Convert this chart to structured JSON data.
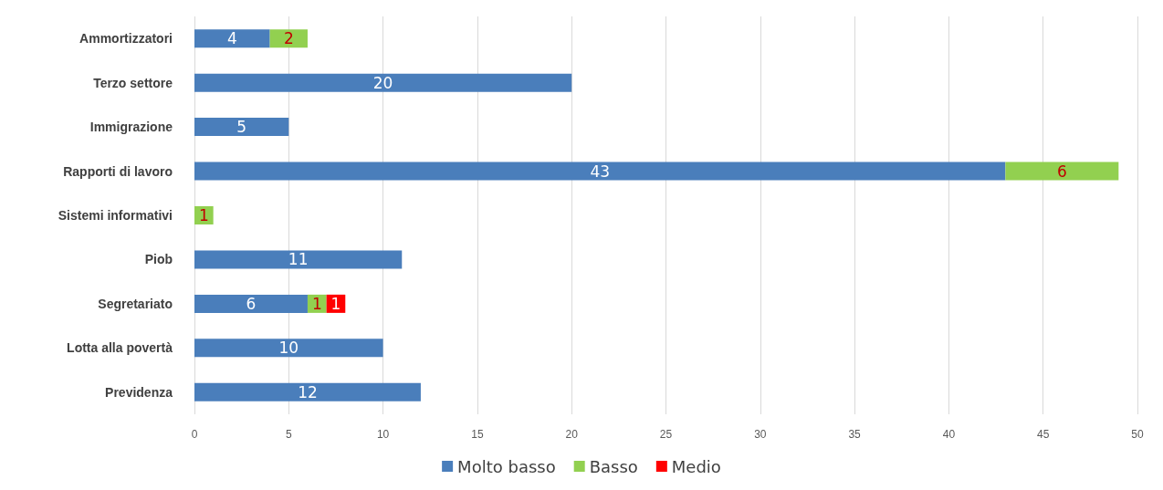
{
  "chart_data": {
    "type": "bar",
    "orientation": "horizontal",
    "stacked": true,
    "categories": [
      "Ammortizzatori",
      "Terzo settore",
      "Immigrazione",
      "Rapporti di lavoro",
      "Sistemi informativi",
      "Piob",
      "Segretariato",
      "Lotta alla povertà",
      "Previdenza"
    ],
    "series": [
      {
        "name": "Molto basso",
        "color": "#4a7ebb",
        "values": [
          4,
          20,
          5,
          43,
          null,
          11,
          6,
          10,
          12
        ]
      },
      {
        "name": "Basso",
        "color": "#92d050",
        "values": [
          2,
          null,
          null,
          6,
          1,
          null,
          1,
          null,
          null
        ]
      },
      {
        "name": "Medio",
        "color": "#ff0000",
        "values": [
          null,
          null,
          null,
          null,
          null,
          null,
          1,
          null,
          null
        ]
      }
    ],
    "xlim": [
      0,
      50
    ],
    "xticks": [
      0,
      5,
      10,
      15,
      20,
      25,
      30,
      35,
      40,
      45,
      50
    ],
    "grid": "x",
    "legend": "bottom",
    "data_labels": true
  }
}
